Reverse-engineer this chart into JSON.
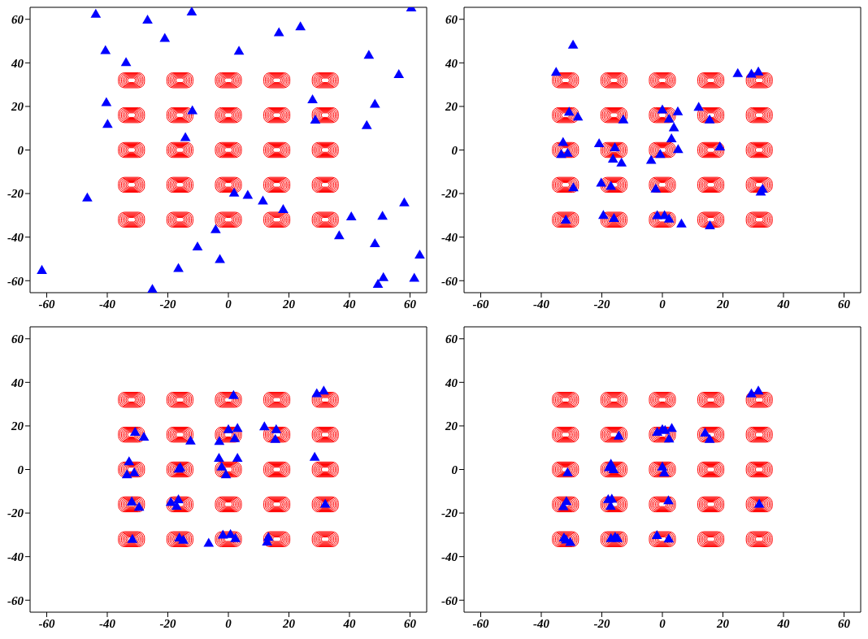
{
  "chart_data": [
    {
      "type": "scatter",
      "color": "#0000ff",
      "marker": "triangle",
      "xlim": [
        -65.5,
        65.5
      ],
      "ylim": [
        -65.5,
        65.5
      ],
      "xticks": [
        -60,
        -40,
        -20,
        0,
        20,
        40,
        60
      ],
      "yticks": [
        -60,
        -40,
        -20,
        0,
        20,
        40,
        60
      ],
      "x": [
        -43.8,
        -26.7,
        -12.1,
        -21.0,
        -40.6,
        -33.8,
        3.5,
        16.7,
        23.8,
        60.4,
        46.4,
        56.3,
        27.8,
        48.4,
        28.7,
        45.7,
        -40.3,
        -39.9,
        -11.9,
        -14.2,
        -46.6,
        1.9,
        6.4,
        11.4,
        18.1,
        58.1,
        40.6,
        50.9,
        -4.2,
        36.6,
        -10.2,
        48.4,
        63.2,
        -2.8,
        -16.5,
        -61.6,
        51.2,
        61.4,
        49.4,
        -25.1
      ],
      "values": [
        62.1,
        59.4,
        63.1,
        51.0,
        45.4,
        39.9,
        45.1,
        53.6,
        56.3,
        65,
        43.3,
        34.4,
        22.8,
        20.8,
        13.5,
        11.0,
        21.5,
        11.5,
        17.8,
        5.5,
        -22.2,
        -20.0,
        -21.0,
        -23.6,
        -27.6,
        -24.5,
        -30.9,
        -30.6,
        -36.8,
        -39.6,
        -44.7,
        -43.2,
        -48.5,
        -50.5,
        -54.6,
        -55.5,
        -58.8,
        -59.1,
        -61.9,
        -64.2
      ]
    },
    {
      "type": "scatter",
      "color": "#0000ff",
      "marker": "triangle",
      "xlim": [
        -65.5,
        65.5
      ],
      "ylim": [
        -65.5,
        65.5
      ],
      "xticks": [
        -60,
        -40,
        -20,
        0,
        20,
        40,
        60
      ],
      "yticks": [
        -60,
        -40,
        -20,
        0,
        20,
        40,
        60
      ],
      "x": [
        -29.5,
        -35.1,
        24.9,
        29.4,
        31.7,
        -30.8,
        -27.9,
        0,
        5.1,
        12.0,
        2.2,
        -12.9,
        15.6,
        3.8,
        3.0,
        -32.8,
        -20.9,
        -15.7,
        5.2,
        19.0,
        -33.4,
        -31.3,
        -0.7,
        -16.3,
        -13.5,
        -3.7,
        -20.2,
        -17.0,
        -29.4,
        -2.2,
        33.1,
        32.5,
        -19.5,
        -16.0,
        -31.9,
        -1.7,
        0.7,
        2.2,
        6.3,
        15.7
      ],
      "values": [
        47.9,
        35.4,
        34.9,
        34.6,
        35.6,
        17.1,
        14.9,
        18.2,
        17.3,
        19.4,
        14.0,
        13.6,
        13.6,
        10.0,
        4.9,
        3.2,
        2.7,
        0.8,
        0,
        1.2,
        -2.3,
        -1.7,
        -2.3,
        -4.4,
        -6.2,
        -5.0,
        -15.4,
        -16.9,
        -17.6,
        -18.1,
        -18.2,
        -19.5,
        -30.3,
        -31.7,
        -32.4,
        -30.4,
        -30.4,
        -31.9,
        -34.2,
        -35.0
      ]
    },
    {
      "type": "scatter",
      "color": "#0000ff",
      "marker": "triangle",
      "xlim": [
        -65.5,
        65.5
      ],
      "ylim": [
        -65.5,
        65.5
      ],
      "xticks": [
        -60,
        -40,
        -20,
        0,
        20,
        40,
        60
      ],
      "yticks": [
        -60,
        -40,
        -20,
        0,
        20,
        40,
        60
      ],
      "x": [
        1.7,
        29.2,
        31.5,
        -30.8,
        -27.9,
        -12.5,
        0,
        3.0,
        -3.0,
        2.1,
        11.9,
        15.8,
        15.5,
        -32.8,
        -33.5,
        -31.1,
        -16.4,
        -15.9,
        -3.1,
        3.0,
        -2.2,
        -0.8,
        28.5,
        -31.9,
        -29.5,
        -19.0,
        -16.5,
        -17.1,
        32.0,
        -31.7,
        -16.2,
        -14.9,
        -6.5,
        -1.8,
        0.7,
        2.3,
        13.2,
        12.8
      ],
      "values": [
        33.7,
        34.6,
        35.8,
        16.9,
        14.6,
        12.8,
        18.1,
        18.6,
        12.7,
        14.0,
        19.4,
        18.1,
        13.6,
        3.3,
        -2.6,
        -1.7,
        0,
        0.6,
        4.9,
        4.9,
        0.9,
        -2.6,
        5.4,
        -15.1,
        -17.6,
        -15.3,
        -14.1,
        -17.1,
        -16.2,
        -32.3,
        -31.7,
        -32.7,
        -34.1,
        -30.4,
        -30.1,
        -31.9,
        -31.4,
        -33.5
      ]
    },
    {
      "type": "scatter",
      "color": "#0000ff",
      "marker": "triangle",
      "xlim": [
        -65.5,
        65.5
      ],
      "ylim": [
        -65.5,
        65.5
      ],
      "xticks": [
        -60,
        -40,
        -20,
        0,
        20,
        40,
        60
      ],
      "yticks": [
        -60,
        -40,
        -20,
        0,
        20,
        40,
        60
      ],
      "x": [
        29.4,
        31.7,
        -14.4,
        -1.7,
        0,
        0.9,
        3.1,
        2.2,
        14.1,
        15.6,
        -31.3,
        -17.0,
        -17.6,
        -16.1,
        0,
        0.6,
        -31.7,
        -32.7,
        -17.9,
        -16.7,
        -17.1,
        2.0,
        32.0,
        -32.5,
        -31.8,
        -30.4,
        -17.0,
        -15.6,
        -14.8,
        -1.8,
        2.1
      ],
      "values": [
        34.5,
        35.8,
        15.1,
        16.9,
        18.1,
        17.7,
        18.6,
        13.8,
        16.5,
        13.6,
        -1.7,
        2.2,
        0.6,
        -0.3,
        0.9,
        -1.8,
        -15.0,
        -17.3,
        -14.0,
        -13.8,
        -17.1,
        -14.6,
        -16.2,
        -31.7,
        -32.6,
        -33.7,
        -31.9,
        -31.3,
        -31.9,
        -30.5,
        -32.1
      ]
    }
  ]
}
